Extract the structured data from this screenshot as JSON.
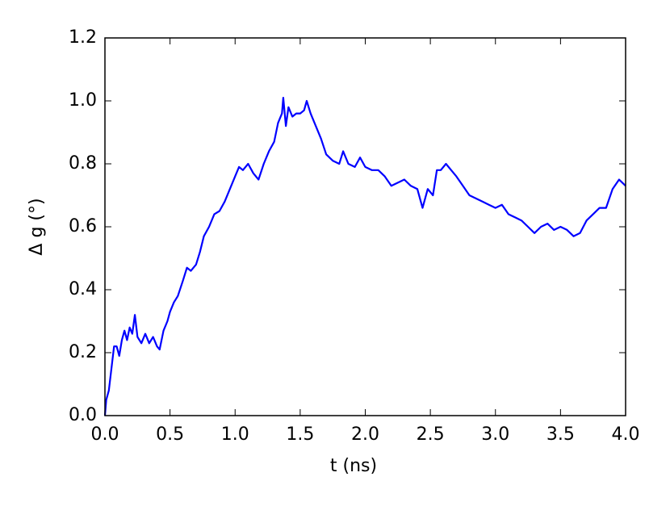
{
  "chart_data": {
    "type": "line",
    "x_label": "t (ns)",
    "y_label": "Δ g (°)",
    "xlim": [
      0,
      4
    ],
    "ylim": [
      0,
      1.2
    ],
    "xticks": [
      {
        "value": 0,
        "label": "0.0"
      },
      0.5,
      {
        "value": 1,
        "label": "1.0"
      },
      1.5,
      {
        "value": 2,
        "label": "2.0"
      },
      2.5,
      {
        "value": 3,
        "label": "3.0"
      },
      3.5,
      {
        "value": 4,
        "label": "4.0"
      }
    ],
    "yticks": [
      {
        "value": 0,
        "label": "0.0"
      },
      0.2,
      0.4,
      0.6,
      0.8,
      {
        "value": 1,
        "label": "1.0"
      },
      1.2
    ],
    "color": "#0000ff",
    "x": [
      0,
      0.01,
      0.03,
      0.05,
      0.07,
      0.09,
      0.11,
      0.13,
      0.15,
      0.17,
      0.19,
      0.21,
      0.23,
      0.25,
      0.28,
      0.31,
      0.34,
      0.37,
      0.4,
      0.42,
      0.45,
      0.48,
      0.5,
      0.53,
      0.56,
      0.6,
      0.63,
      0.66,
      0.7,
      0.73,
      0.76,
      0.8,
      0.84,
      0.88,
      0.92,
      0.96,
      1.0,
      1.03,
      1.06,
      1.1,
      1.14,
      1.18,
      1.22,
      1.26,
      1.3,
      1.33,
      1.36,
      1.37,
      1.39,
      1.41,
      1.44,
      1.47,
      1.5,
      1.53,
      1.55,
      1.58,
      1.62,
      1.66,
      1.7,
      1.75,
      1.8,
      1.83,
      1.87,
      1.92,
      1.96,
      2.0,
      2.05,
      2.1,
      2.15,
      2.2,
      2.25,
      2.3,
      2.35,
      2.4,
      2.44,
      2.48,
      2.52,
      2.55,
      2.58,
      2.62,
      2.66,
      2.7,
      2.75,
      2.8,
      2.85,
      2.9,
      2.95,
      3.0,
      3.05,
      3.1,
      3.15,
      3.2,
      3.25,
      3.3,
      3.35,
      3.4,
      3.45,
      3.5,
      3.55,
      3.6,
      3.65,
      3.7,
      3.75,
      3.8,
      3.85,
      3.9,
      3.95,
      4.0
    ],
    "values": [
      0,
      0.05,
      0.08,
      0.15,
      0.22,
      0.22,
      0.19,
      0.24,
      0.27,
      0.24,
      0.28,
      0.26,
      0.32,
      0.25,
      0.23,
      0.26,
      0.23,
      0.25,
      0.22,
      0.21,
      0.27,
      0.3,
      0.33,
      0.36,
      0.38,
      0.43,
      0.47,
      0.46,
      0.48,
      0.52,
      0.57,
      0.6,
      0.64,
      0.65,
      0.68,
      0.72,
      0.76,
      0.79,
      0.78,
      0.8,
      0.77,
      0.75,
      0.8,
      0.84,
      0.87,
      0.93,
      0.96,
      1.01,
      0.92,
      0.98,
      0.95,
      0.96,
      0.96,
      0.97,
      1.0,
      0.96,
      0.92,
      0.88,
      0.83,
      0.81,
      0.8,
      0.84,
      0.8,
      0.79,
      0.82,
      0.79,
      0.78,
      0.78,
      0.76,
      0.73,
      0.74,
      0.75,
      0.73,
      0.72,
      0.66,
      0.72,
      0.7,
      0.78,
      0.78,
      0.8,
      0.78,
      0.76,
      0.73,
      0.7,
      0.69,
      0.68,
      0.67,
      0.66,
      0.67,
      0.64,
      0.63,
      0.62,
      0.6,
      0.58,
      0.6,
      0.61,
      0.59,
      0.6,
      0.59,
      0.57,
      0.58,
      0.62,
      0.64,
      0.66,
      0.66,
      0.72,
      0.75,
      0.73
    ]
  }
}
